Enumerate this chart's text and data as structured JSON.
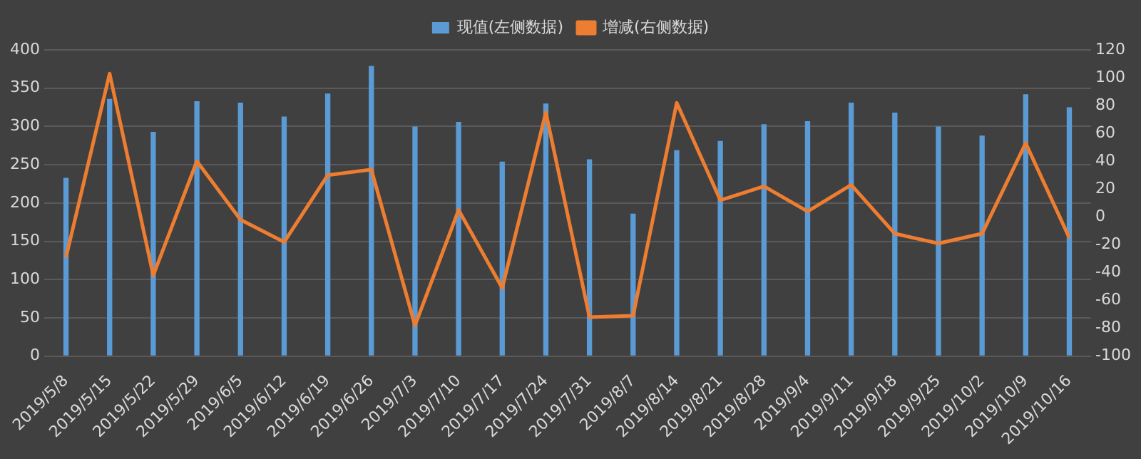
{
  "chart_data": {
    "type": "bar",
    "categories": [
      "2019/5/8",
      "2019/5/15",
      "2019/5/22",
      "2019/5/29",
      "2019/6/5",
      "2019/6/12",
      "2019/6/19",
      "2019/6/26",
      "2019/7/3",
      "2019/7/10",
      "2019/7/17",
      "2019/7/24",
      "2019/7/31",
      "2019/8/7",
      "2019/8/14",
      "2019/8/21",
      "2019/8/28",
      "2019/9/4",
      "2019/9/11",
      "2019/9/18",
      "2019/9/25",
      "2019/10/2",
      "2019/10/9",
      "2019/10/16"
    ],
    "series": [
      {
        "name": "现值(左侧数据)",
        "color": "#5b9bd5",
        "values": [
          233,
          336,
          293,
          333,
          331,
          313,
          343,
          379,
          300,
          306,
          254,
          330,
          257,
          186,
          269,
          281,
          303,
          307,
          331,
          318,
          300,
          288,
          342,
          325
        ]
      },
      {
        "name": "增减(右侧数据)",
        "type": "line",
        "axis": "y2",
        "color": "#ed7d31",
        "values": [
          -29,
          103,
          -42,
          40,
          -2,
          -18,
          30,
          34,
          -78,
          5,
          -51,
          75,
          -72,
          -71,
          82,
          12,
          22,
          4,
          23,
          -12,
          -19,
          -12,
          53,
          -15
        ]
      }
    ],
    "ylim": [
      0,
      400
    ],
    "yticks": [
      0,
      50,
      100,
      150,
      200,
      250,
      300,
      350,
      400
    ],
    "y2lim": [
      -100,
      120
    ],
    "y2ticks": [
      -100,
      -80,
      -60,
      -40,
      -20,
      0,
      20,
      40,
      60,
      80,
      100,
      120
    ],
    "grid": "y",
    "legend": "top",
    "marker": "none"
  }
}
